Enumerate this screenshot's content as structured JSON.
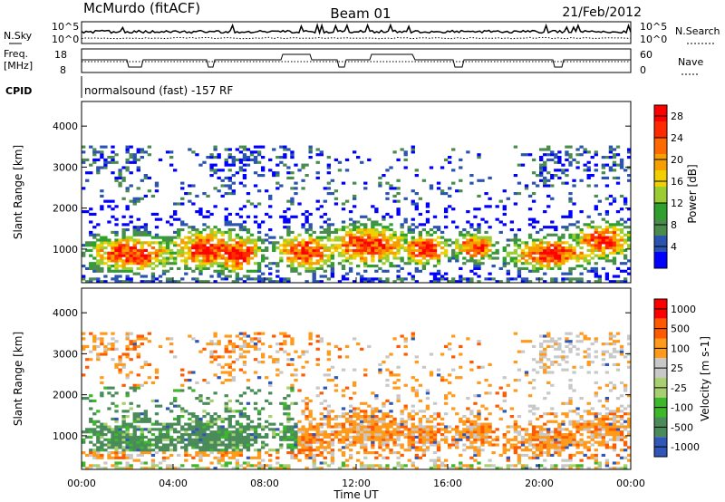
{
  "header": {
    "station": "McMurdo (fitACF)",
    "beam": "Beam 01",
    "date": "21/Feb/2012"
  },
  "panels": {
    "nsky": {
      "left_label": "N.Sky",
      "right_label": "N.Search",
      "tick_top": "10^5",
      "tick_bottom": "10^0",
      "right_tick_top": "10^5",
      "right_tick_bottom": "10^0"
    },
    "freq": {
      "left_label_1": "Freq.",
      "left_label_2": "[MHz]",
      "right_label": "Nave",
      "tick_top": "18",
      "tick_bottom": "8",
      "right_tick_top": "60",
      "right_tick_bottom": "0"
    },
    "cpid": {
      "left_label": "CPID",
      "text": "normalsound (fast) -157 RF"
    }
  },
  "colors": {
    "power": [
      "#0000ff",
      "#2a54b0",
      "#4a8b4e",
      "#2ea02e",
      "#9acd32",
      "#f0d000",
      "#f5a000",
      "#ff6a00",
      "#ff2a00",
      "#ff0000"
    ],
    "velocity": [
      "#ff0000",
      "#ff5a00",
      "#ff9a1a",
      "#c8c8c8",
      "#a8d070",
      "#3cb828",
      "#4a8b5a",
      "#3056b8"
    ]
  },
  "chart_data": [
    {
      "type": "heatmap",
      "name": "power",
      "ylabel": "Slant Range [km]",
      "xlabel": "",
      "x_ticks": [
        "00:00",
        "04:00",
        "08:00",
        "12:00",
        "16:00",
        "20:00",
        "00:00"
      ],
      "xlim": [
        0,
        24
      ],
      "y_ticks": [
        "1000",
        "2000",
        "3000",
        "4000"
      ],
      "ylim": [
        180,
        4600
      ],
      "colorbar_label": "Power [dB]",
      "colorbar_ticks": [
        "4",
        "8",
        "12",
        "16",
        "20",
        "24",
        "28"
      ],
      "colorbar_range": [
        0,
        30
      ]
    },
    {
      "type": "heatmap",
      "name": "velocity",
      "ylabel": "Slant Range [km]",
      "xlabel": "Time UT",
      "x_ticks": [
        "00:00",
        "04:00",
        "08:00",
        "12:00",
        "16:00",
        "20:00",
        "00:00"
      ],
      "xlim": [
        0,
        24
      ],
      "y_ticks": [
        "1000",
        "2000",
        "3000",
        "4000"
      ],
      "ylim": [
        180,
        4600
      ],
      "colorbar_label": "Velocity [m s-1]",
      "colorbar_ticks": [
        "1000",
        "500",
        "100",
        "25",
        "-25",
        "-100",
        "-500",
        "-1000"
      ]
    }
  ]
}
